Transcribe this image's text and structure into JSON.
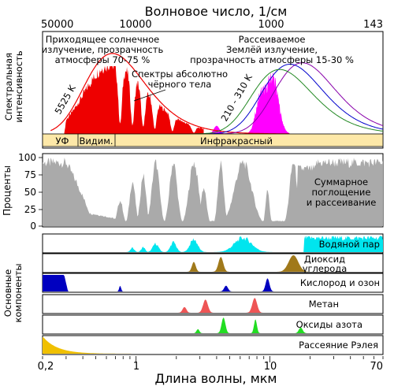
{
  "top_axis": {
    "title": "Волновое число, 1/см",
    "ticks": [
      "50000",
      "10000",
      "1000",
      "143"
    ]
  },
  "bottom_axis": {
    "title": "Длина волны, мкм",
    "ticks": [
      "0,2",
      "1",
      "10",
      "70"
    ]
  },
  "spectrum_panel": {
    "ylabel_line1": "Спектральная",
    "ylabel_line2": "интенсивность",
    "incoming": [
      "Приходящее солнечное",
      "излучение, прозрачность",
      "атмосферы 70-75 %"
    ],
    "outgoing": [
      "Рассеиваемое",
      "Землёй излучение,",
      "прозрачность атмосферы 15-30 %"
    ],
    "blackbody": [
      "Спектры абсолютно",
      "чёрного тела"
    ],
    "sun_temp": "5525 K",
    "earth_temp": "210 - 310 K",
    "bands": [
      "УФ",
      "Видим.",
      "Инфракрасный"
    ]
  },
  "absorption_panel": {
    "ylabel": "Проценты",
    "yticks": [
      "100",
      "75",
      "50",
      "25",
      "0"
    ],
    "label": [
      "Суммарное",
      "поглощение",
      "и рассеивание"
    ]
  },
  "components": {
    "ylabel_line1": "Основные",
    "ylabel_line2": "компоненты",
    "items": [
      {
        "label": "Водяной пар",
        "color": "#00e5ee"
      },
      {
        "label": "Диоксид углерода",
        "label_line1": "Диоксид",
        "label_line2": "углерода",
        "color": "#a0791a"
      },
      {
        "label": "Кислород и озон",
        "color": "#0000c0"
      },
      {
        "label": "Метан",
        "color": "#ee5555"
      },
      {
        "label": "Оксиды азота",
        "color": "#22dd22"
      },
      {
        "label": "Рассеяние Рэлея",
        "color": "#f0c000"
      }
    ]
  },
  "colors": {
    "sun": "#ee0000",
    "earth": "#ff00ff",
    "total": "#aaaaaa",
    "band_bg": "#fde8a8",
    "curve_blue": "#0000cc",
    "curve_green": "#228822",
    "curve_purple": "#8800aa"
  }
}
